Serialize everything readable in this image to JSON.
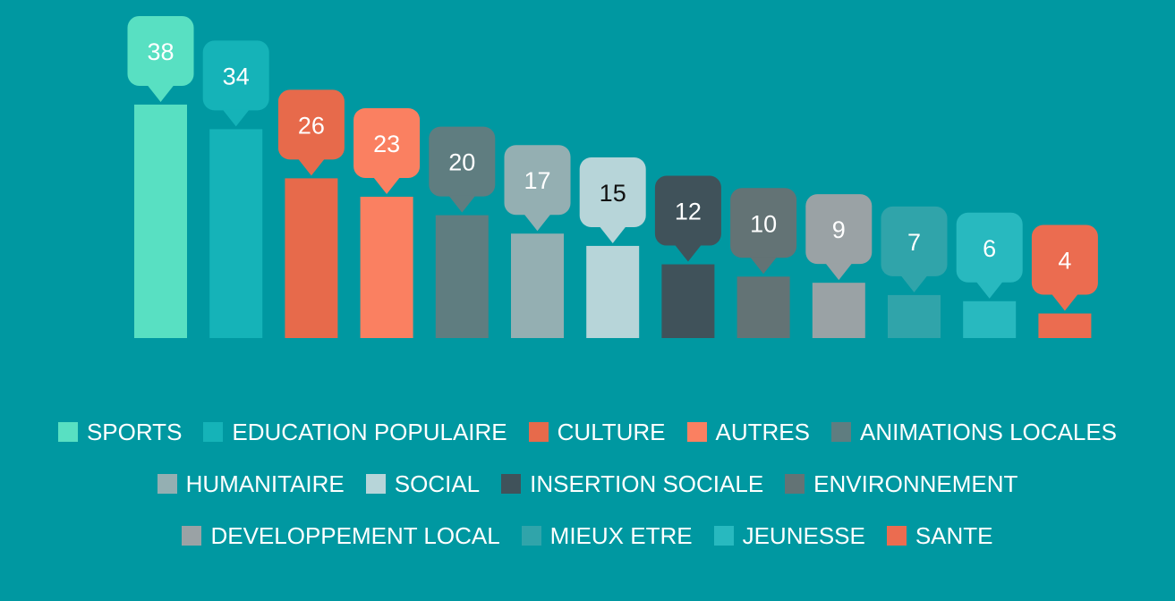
{
  "chart_data": {
    "type": "bar",
    "categories": [
      "SPORTS",
      "EDUCATION POPULAIRE",
      "CULTURE",
      "AUTRES",
      "ANIMATIONS LOCALES",
      "HUMANITAIRE",
      "SOCIAL",
      "INSERTION SOCIALE",
      "ENVIRONNEMENT",
      "DEVELOPPEMENT LOCAL",
      "MIEUX ETRE",
      "JEUNESSE",
      "SANTE"
    ],
    "values": [
      38,
      34,
      26,
      23,
      20,
      17,
      15,
      12,
      10,
      9,
      7,
      6,
      4
    ],
    "colors": [
      "#58e0c2",
      "#15b3b8",
      "#e76a4b",
      "#fa8061",
      "#5f7d80",
      "#94afb2",
      "#b7d5d9",
      "#40525a",
      "#637375",
      "#9aa2a5",
      "#30a4aa",
      "#28b9bf",
      "#eb6c50"
    ],
    "legend": "bottom"
  }
}
